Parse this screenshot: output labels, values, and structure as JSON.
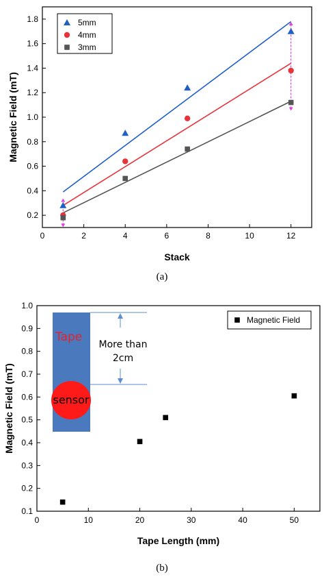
{
  "chart_data": [
    {
      "type": "scatter",
      "panel_caption": "(a)",
      "xlabel": "Stack",
      "ylabel": "Magnetic Field (mT)",
      "xlim": [
        0,
        13
      ],
      "ylim": [
        0.1,
        1.9
      ],
      "xticks": [
        "0",
        "2",
        "4",
        "6",
        "8",
        "10",
        "12"
      ],
      "yticks": [
        "0.2",
        "0.4",
        "0.6",
        "0.8",
        "1.0",
        "1.2",
        "1.4",
        "1.6",
        "1.8"
      ],
      "legend_position": "top-left",
      "series": [
        {
          "name": "5mm",
          "marker": "triangle",
          "color": "#1f5fc6",
          "x": [
            1,
            4,
            7,
            12
          ],
          "y": [
            0.28,
            0.87,
            1.24,
            1.7
          ],
          "fit": [
            [
              1,
              0.39
            ],
            [
              12,
              1.78
            ]
          ]
        },
        {
          "name": "4mm",
          "marker": "circle",
          "color": "#e8333a",
          "x": [
            1,
            4,
            7,
            12
          ],
          "y": [
            0.2,
            0.64,
            0.99,
            1.38
          ],
          "fit": [
            [
              1,
              0.28
            ],
            [
              12,
              1.44
            ]
          ]
        },
        {
          "name": "3mm",
          "marker": "square",
          "color": "#555555",
          "x": [
            1,
            4,
            7,
            12
          ],
          "y": [
            0.18,
            0.5,
            0.74,
            1.12
          ],
          "fit": [
            [
              1,
              0.22
            ],
            [
              12,
              1.13
            ]
          ]
        }
      ],
      "error_bars": {
        "color": "#e040e0",
        "x": [
          1,
          12
        ],
        "ylow": [
          0.12,
          1.07
        ],
        "yhigh": [
          0.32,
          1.76
        ]
      }
    },
    {
      "type": "scatter",
      "panel_caption": "(b)",
      "xlabel": "Tape Length (mm)",
      "ylabel": "Magnetic Field (mT)",
      "xlim": [
        0,
        55
      ],
      "ylim": [
        0.1,
        1.0
      ],
      "xticks": [
        "0",
        "10",
        "20",
        "30",
        "40",
        "50"
      ],
      "yticks": [
        "0.1",
        "0.2",
        "0.3",
        "0.4",
        "0.5",
        "0.6",
        "0.7",
        "0.8",
        "0.9",
        "1.0"
      ],
      "legend_position": "top-right",
      "series": [
        {
          "name": "Magnetic Field",
          "marker": "square",
          "color": "#000000",
          "x": [
            5,
            20,
            25,
            50
          ],
          "y": [
            0.14,
            0.405,
            0.51,
            0.605
          ]
        }
      ],
      "inset": {
        "tape_label": "Tape",
        "tape_label_color": "#e8202a",
        "tape_color": "#4a79bd",
        "sensor_label": "sensor",
        "sensor_color": "#ff1a1a",
        "distance_label_line1": "More than",
        "distance_label_line2": "2cm",
        "arrow_color": "#5b8fd0"
      }
    }
  ]
}
